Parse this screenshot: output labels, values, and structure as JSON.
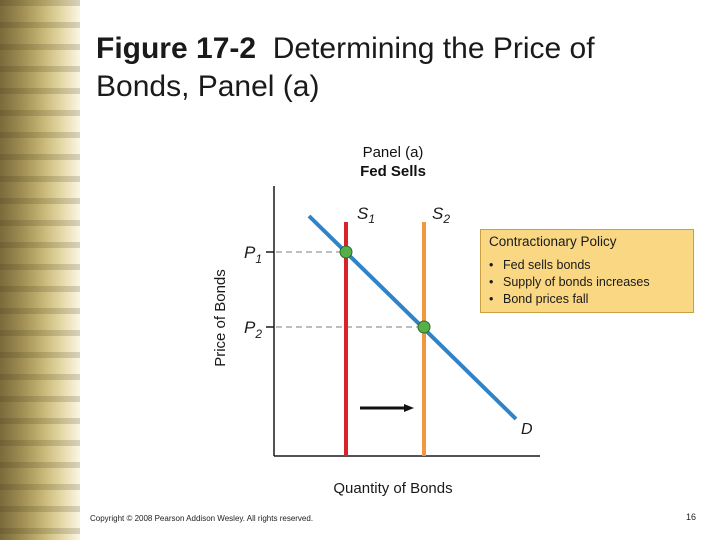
{
  "slide": {
    "title_bold": "Figure 17-2",
    "title_rest": "Determining the Price of Bonds, Panel (a)",
    "copyright": "Copyright © 2008 Pearson Addison Wesley. All rights reserved.",
    "page_number": "16"
  },
  "diagram": {
    "panel_label": "Panel (a)",
    "panel_subtitle": "Fed Sells",
    "y_axis_label": "Price of Bonds",
    "x_axis_label": "Quantity of Bonds",
    "supply_1_label": "S",
    "supply_1_sub": "1",
    "supply_2_label": "S",
    "supply_2_sub": "2",
    "demand_label": "D",
    "price_1_label": "P",
    "price_1_sub": "1",
    "price_2_label": "P",
    "price_2_sub": "2",
    "colors": {
      "supply_1": "#d8232a",
      "supply_2": "#f0973f",
      "demand": "#2f83c8",
      "equilibrium_point": "#55b04a",
      "policy_box": "#f9d783"
    }
  },
  "policy_box": {
    "title": "Contractionary Policy",
    "items": [
      "Fed sells bonds",
      "Supply of bonds increases",
      "Bond prices fall"
    ]
  }
}
